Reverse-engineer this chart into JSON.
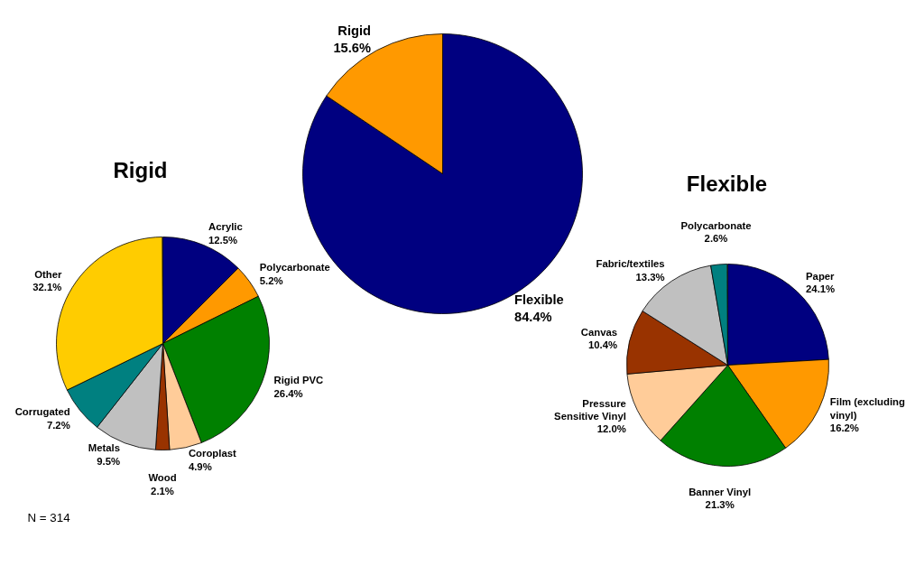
{
  "chart_data": [
    {
      "type": "pie",
      "title": "Rigid",
      "categories": [
        "Acrylic",
        "Polycarbonate",
        "Rigid PVC",
        "Coroplast",
        "Wood",
        "Metals",
        "Corrugated",
        "Other"
      ],
      "values": [
        12.5,
        5.2,
        26.4,
        4.9,
        2.1,
        9.5,
        7.2,
        32.1
      ],
      "value_labels": [
        "12.5%",
        "5.2%",
        "26.4%",
        "4.9%",
        "2.1%",
        "9.5%",
        "7.2%",
        "32.1%"
      ],
      "colors": [
        "#000080",
        "#ff9900",
        "#008000",
        "#ffcc99",
        "#993300",
        "#c0c0c0",
        "#008080",
        "#ffcc00"
      ],
      "annotations": [
        "N = 314"
      ]
    },
    {
      "type": "pie",
      "categories": [
        "Flexible",
        "Rigid"
      ],
      "values": [
        84.4,
        15.6
      ],
      "value_labels": [
        "84.4%",
        "15.6%"
      ],
      "colors": [
        "#000080",
        "#ff9900"
      ]
    },
    {
      "type": "pie",
      "title": "Flexible",
      "categories": [
        "Paper",
        "Film (excluding vinyl)",
        "Banner Vinyl",
        "Pressure Sensitive Vinyl",
        "Canvas",
        "Fabric/textiles",
        "Polycarbonate"
      ],
      "values": [
        24.1,
        16.2,
        21.3,
        12.0,
        10.4,
        13.3,
        2.6
      ],
      "value_labels": [
        "24.1%",
        "16.2%",
        "21.3%",
        "12.0%",
        "10.4%",
        "13.3%",
        "2.6%"
      ],
      "colors": [
        "#000080",
        "#ff9900",
        "#008000",
        "#ffcc99",
        "#993300",
        "#c0c0c0",
        "#008080"
      ]
    }
  ]
}
